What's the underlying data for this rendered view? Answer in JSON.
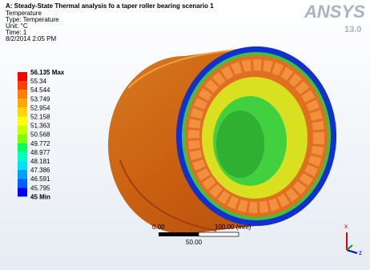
{
  "header": {
    "title": "A: Steady-State Thermal analysis  fo a taper roller bearing  scenario 1",
    "lines": [
      "Temperature",
      "Type: Temperature",
      "Unit: °C",
      "Time: 1",
      "8/2/2014 2:05 PM"
    ]
  },
  "logo": {
    "brand": "ANSYS",
    "version": "13.0"
  },
  "legend": {
    "labels": [
      "56.135 Max",
      "55.34",
      "54.544",
      "53.749",
      "52.954",
      "52.158",
      "51.363",
      "50.568",
      "49.772",
      "48.977",
      "48.181",
      "47.386",
      "46.591",
      "45.795",
      "45 Min"
    ],
    "colors": [
      "#ff0000",
      "#ff4000",
      "#ff8000",
      "#ffaa00",
      "#ffd500",
      "#ffff00",
      "#c8ff00",
      "#80ff00",
      "#00ff60",
      "#00ffc0",
      "#00e0ff",
      "#00a0ff",
      "#0060ff",
      "#0000ff"
    ]
  },
  "scale_bar": {
    "start": "0.00",
    "end": "100.00 (mm)",
    "middle": "50.00"
  },
  "triad": {
    "x": "x",
    "z": "z"
  }
}
